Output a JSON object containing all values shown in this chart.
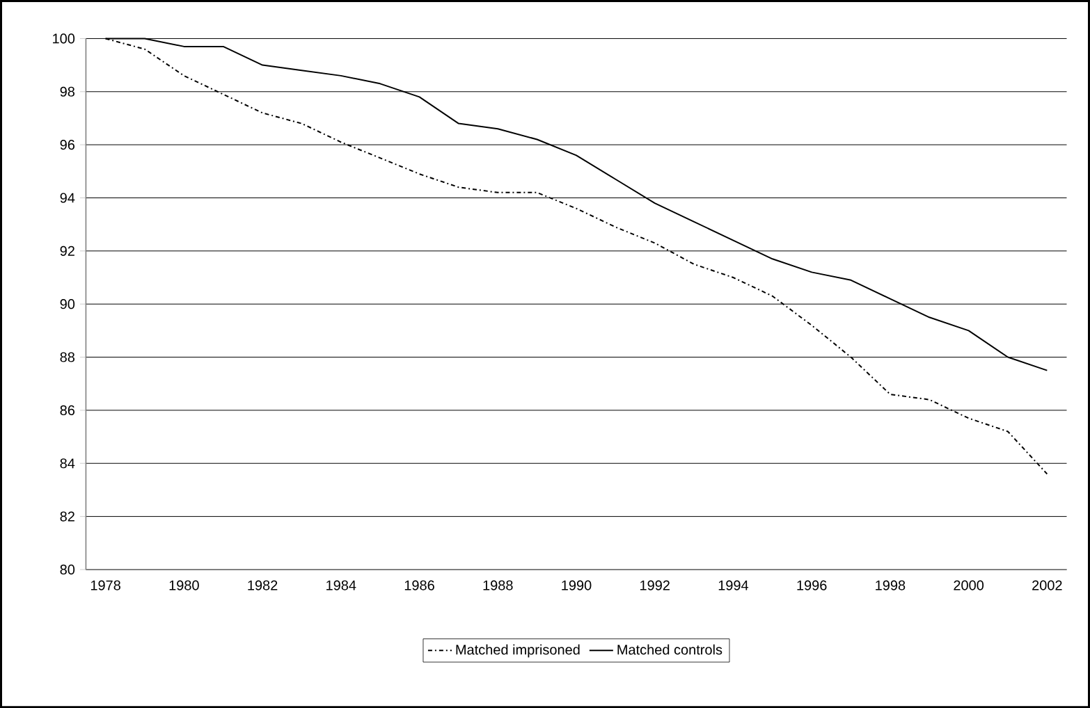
{
  "chart_data": {
    "type": "line",
    "categories": [
      "1978",
      null,
      "1980",
      null,
      "1982",
      null,
      "1984",
      null,
      "1986",
      null,
      "1988",
      null,
      "1990",
      null,
      "1992",
      null,
      "1994",
      null,
      "1996",
      null,
      "1998",
      null,
      "2000",
      null,
      "2002"
    ],
    "series": [
      {
        "name": "Matched imprisoned",
        "color": "#000000",
        "line_style": "dashdot",
        "values": [
          100,
          99.6,
          98.6,
          97.9,
          97.2,
          96.8,
          96.1,
          95.5,
          94.9,
          94.4,
          94.2,
          94.2,
          93.6,
          92.9,
          92.3,
          91.5,
          91.0,
          90.3,
          89.2,
          88.0,
          86.6,
          86.4,
          85.7,
          85.2,
          83.6
        ]
      },
      {
        "name": "Matched controls",
        "color": "#000000",
        "line_style": "solid",
        "values": [
          100,
          100,
          99.7,
          99.7,
          99.0,
          98.8,
          98.6,
          98.3,
          97.8,
          96.8,
          96.6,
          96.2,
          95.6,
          94.7,
          93.8,
          93.1,
          92.4,
          91.7,
          91.2,
          90.9,
          90.2,
          89.5,
          89.0,
          88.0,
          87.5
        ]
      }
    ],
    "ylim": [
      80,
      100
    ],
    "yticks": [
      80,
      82,
      84,
      86,
      88,
      90,
      92,
      94,
      96,
      98,
      100
    ],
    "grid": "y",
    "legend": "bottom",
    "marker": "none"
  }
}
